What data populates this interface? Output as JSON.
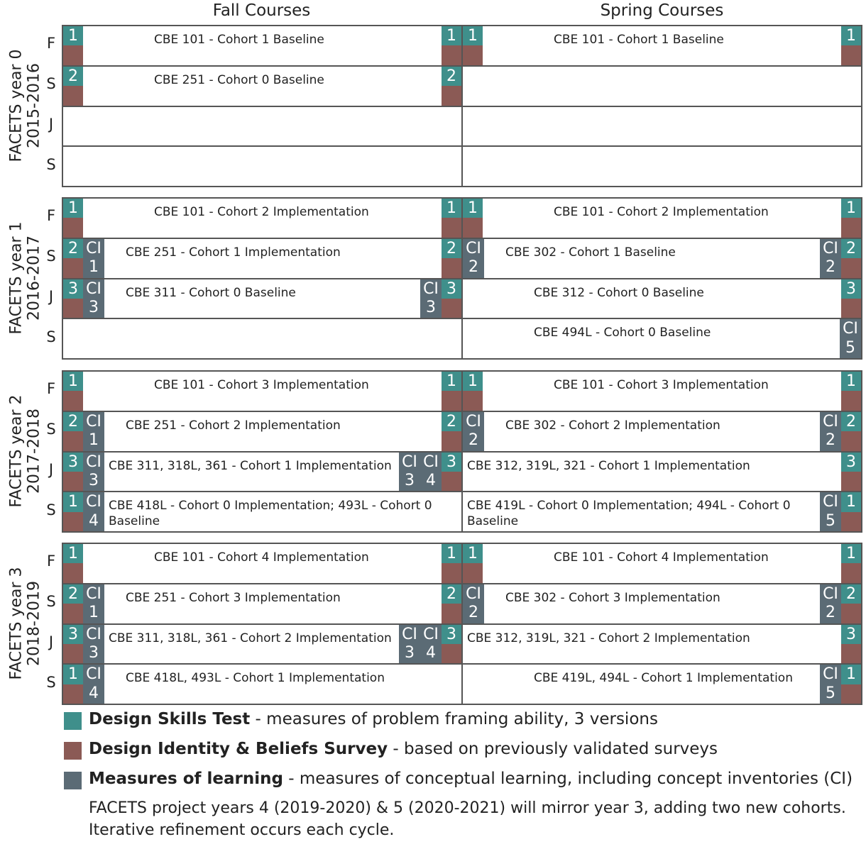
{
  "header": {
    "columns": [
      "Fall Courses",
      "Spring Courses"
    ]
  },
  "colors": {
    "test": "#3f8f8b",
    "survey": "#8b5a55",
    "ci": "#5b6b75"
  },
  "years": [
    {
      "label": "FACETS year 0",
      "range": "2015-2016",
      "rows": [
        {
          "level": "F",
          "fall": {
            "text": "CBE 101 - Cohort 1 Baseline",
            "left": [
              {
                "kind": "test",
                "label": "1"
              }
            ],
            "right": [
              {
                "kind": "test",
                "label": "1"
              }
            ]
          },
          "spring": {
            "text": "CBE 101 - Cohort 1 Baseline",
            "left": [
              {
                "kind": "test",
                "label": "1"
              }
            ],
            "right": [
              {
                "kind": "test",
                "label": "1"
              }
            ]
          }
        },
        {
          "level": "S",
          "fall": {
            "text": "CBE 251 - Cohort 0 Baseline",
            "left": [
              {
                "kind": "test",
                "label": "2"
              }
            ],
            "right": [
              {
                "kind": "test",
                "label": "2"
              }
            ]
          },
          "spring": {
            "left": [],
            "right": []
          }
        },
        {
          "level": "J",
          "fall": {
            "left": [],
            "right": []
          },
          "spring": {
            "left": [],
            "right": []
          }
        },
        {
          "level": "S",
          "fall": {
            "left": [],
            "right": []
          },
          "spring": {
            "left": [],
            "right": []
          }
        }
      ]
    },
    {
      "label": "FACETS year 1",
      "range": "2016-2017",
      "rows": [
        {
          "level": "F",
          "fall": {
            "text": "CBE 101 - Cohort 2 Implementation",
            "left": [
              {
                "kind": "test",
                "label": "1"
              }
            ],
            "right": [
              {
                "kind": "test",
                "label": "1"
              }
            ]
          },
          "spring": {
            "text": "CBE 101  - Cohort 2 Implementation",
            "left": [
              {
                "kind": "test",
                "label": "1"
              }
            ],
            "right": [
              {
                "kind": "test",
                "label": "1"
              }
            ]
          }
        },
        {
          "level": "S",
          "fall": {
            "text": "CBE 251 - Cohort 1 Implementation",
            "left": [
              {
                "kind": "test",
                "label": "2"
              },
              {
                "kind": "ci",
                "label": "CI",
                "number": "1"
              }
            ],
            "right": [
              {
                "kind": "test",
                "label": "2"
              }
            ]
          },
          "spring": {
            "text": "CBE 302 - Cohort 1 Baseline",
            "left": [
              {
                "kind": "ci",
                "label": "CI",
                "number": "2"
              }
            ],
            "right": [
              {
                "kind": "ci",
                "label": "CI",
                "number": "2"
              },
              {
                "kind": "test",
                "label": "2"
              }
            ]
          }
        },
        {
          "level": "J",
          "fall": {
            "text": "CBE 311 - Cohort 0 Baseline",
            "left": [
              {
                "kind": "test",
                "label": "3"
              },
              {
                "kind": "ci",
                "label": "CI",
                "number": "3"
              }
            ],
            "right": [
              {
                "kind": "ci",
                "label": "CI",
                "number": "3"
              },
              {
                "kind": "test",
                "label": "3"
              }
            ]
          },
          "spring": {
            "text": "CBE 312 - Cohort 0 Baseline",
            "left": [],
            "right": [
              {
                "kind": "test",
                "label": "3"
              }
            ]
          }
        },
        {
          "level": "S",
          "fall": {
            "left": [],
            "right": []
          },
          "spring": {
            "text": "CBE 494L - Cohort 0 Baseline",
            "left": [],
            "right": [
              {
                "kind": "ci",
                "label": "CI",
                "number": "5"
              }
            ]
          }
        }
      ]
    },
    {
      "label": "FACETS year 2",
      "range": "2017-2018",
      "rows": [
        {
          "level": "F",
          "fall": {
            "text": "CBE 101 - Cohort 3 Implementation",
            "left": [
              {
                "kind": "test",
                "label": "1"
              }
            ],
            "right": [
              {
                "kind": "test",
                "label": "1"
              }
            ]
          },
          "spring": {
            "text": "CBE 101 - Cohort 3 Implementation",
            "left": [
              {
                "kind": "test",
                "label": "1"
              }
            ],
            "right": [
              {
                "kind": "test",
                "label": "1"
              }
            ]
          }
        },
        {
          "level": "S",
          "fall": {
            "text": "CBE 251 - Cohort 2 Implementation",
            "left": [
              {
                "kind": "test",
                "label": "2"
              },
              {
                "kind": "ci",
                "label": "CI",
                "number": "1"
              }
            ],
            "right": [
              {
                "kind": "test",
                "label": "2"
              }
            ]
          },
          "spring": {
            "text": "CBE 302 - Cohort 2 Implementation",
            "left": [
              {
                "kind": "ci",
                "label": "CI",
                "number": "2"
              }
            ],
            "right": [
              {
                "kind": "ci",
                "label": "CI",
                "number": "2"
              },
              {
                "kind": "test",
                "label": "2"
              }
            ]
          }
        },
        {
          "level": "J",
          "fall": {
            "text": "CBE 311, 318L, 361 - Cohort 1 Implementation",
            "left": [
              {
                "kind": "test",
                "label": "3"
              },
              {
                "kind": "ci",
                "label": "CI",
                "number": "3"
              }
            ],
            "right": [
              {
                "kind": "ci",
                "label": "CI",
                "number": "3"
              },
              {
                "kind": "ci",
                "label": "CI",
                "number": "4"
              },
              {
                "kind": "test",
                "label": "3"
              }
            ]
          },
          "spring": {
            "text": "CBE 312, 319L, 321 - Cohort 1 Implementation",
            "left": [],
            "right": [
              {
                "kind": "test",
                "label": "3"
              }
            ]
          }
        },
        {
          "level": "S",
          "fall": {
            "text": "CBE 418L - Cohort 0 Implementation; 493L - Cohort 0 Baseline",
            "left": [
              {
                "kind": "test",
                "label": "1"
              },
              {
                "kind": "ci",
                "label": "CI",
                "number": "4"
              }
            ],
            "right": []
          },
          "spring": {
            "text": "CBE 419L - Cohort 0 Implementation; 494L - Cohort 0 Baseline",
            "left": [],
            "right": [
              {
                "kind": "ci",
                "label": "CI",
                "number": "5"
              },
              {
                "kind": "test",
                "label": "1"
              }
            ]
          }
        }
      ]
    },
    {
      "label": "FACETS year 3",
      "range": "2018-2019",
      "rows": [
        {
          "level": "F",
          "fall": {
            "text": "CBE 101 - Cohort 4 Implementation",
            "left": [
              {
                "kind": "test",
                "label": "1"
              }
            ],
            "right": [
              {
                "kind": "test",
                "label": "1"
              }
            ]
          },
          "spring": {
            "text": "CBE 101 - Cohort 4 Implementation",
            "left": [
              {
                "kind": "test",
                "label": "1"
              }
            ],
            "right": [
              {
                "kind": "test",
                "label": "1"
              }
            ]
          }
        },
        {
          "level": "S",
          "fall": {
            "text": "CBE 251 - Cohort 3 Implementation",
            "left": [
              {
                "kind": "test",
                "label": "2"
              },
              {
                "kind": "ci",
                "label": "CI",
                "number": "1"
              }
            ],
            "right": [
              {
                "kind": "test",
                "label": "2"
              }
            ]
          },
          "spring": {
            "text": "CBE 302 - Cohort 3 Implementation",
            "left": [
              {
                "kind": "ci",
                "label": "CI",
                "number": "2"
              }
            ],
            "right": [
              {
                "kind": "ci",
                "label": "CI",
                "number": "2"
              },
              {
                "kind": "test",
                "label": "2"
              }
            ]
          }
        },
        {
          "level": "J",
          "fall": {
            "text": "CBE 311, 318L, 361 - Cohort 2 Implementation",
            "left": [
              {
                "kind": "test",
                "label": "3"
              },
              {
                "kind": "ci",
                "label": "CI",
                "number": "3"
              }
            ],
            "right": [
              {
                "kind": "ci",
                "label": "CI",
                "number": "3"
              },
              {
                "kind": "ci",
                "label": "CI",
                "number": "4"
              },
              {
                "kind": "test",
                "label": "3"
              }
            ]
          },
          "spring": {
            "text": "CBE 312, 319L, 321 - Cohort 2 Implementation",
            "left": [],
            "right": [
              {
                "kind": "test",
                "label": "3"
              }
            ]
          }
        },
        {
          "level": "S",
          "fall": {
            "text": "CBE 418L, 493L - Cohort 1 Implementation",
            "left": [
              {
                "kind": "test",
                "label": "1"
              },
              {
                "kind": "ci",
                "label": "CI",
                "number": "4"
              }
            ],
            "right": []
          },
          "spring": {
            "text": "CBE 419L, 494L - Cohort 1 Implementation",
            "left": [],
            "right": [
              {
                "kind": "ci",
                "label": "CI",
                "number": "5"
              },
              {
                "kind": "test",
                "label": "1"
              }
            ]
          }
        }
      ]
    }
  ],
  "legend": [
    {
      "term": "Design Skills Test",
      "description": "- measures of problem framing ability, 3 versions",
      "color": "#3f8f8b"
    },
    {
      "term": "Design Identity & Beliefs Survey",
      "description": "- based on previously validated surveys",
      "color": "#8b5a55"
    },
    {
      "term": "Measures of learning",
      "description": "- measures of conceptual learning, including concept inventories (CI)",
      "color": "#5b6b75"
    }
  ],
  "notes": [
    "FACETS project years 4 (2019-2020) & 5 (2020-2021) will mirror year 3, adding two new cohorts.",
    "Iterative refinement occurs each cycle."
  ]
}
